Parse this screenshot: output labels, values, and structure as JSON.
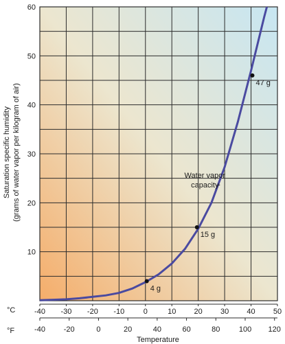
{
  "chart_data": {
    "type": "line",
    "title": "",
    "xlabel": "Temperature",
    "ylabel_line1": "Saturation specific humidity",
    "ylabel_line2": "(grams of water vapor per kilogram of air)",
    "x_celsius_unit": "°C",
    "x_fahrenheit_unit": "°F",
    "xlim_celsius": [
      -40,
      50
    ],
    "ylim": [
      0,
      60
    ],
    "grid": true,
    "y_ticks": [
      10,
      20,
      30,
      40,
      50,
      60
    ],
    "x_ticks_celsius": [
      -40,
      -30,
      -20,
      -10,
      0,
      10,
      20,
      30,
      40,
      50
    ],
    "x_ticks_fahrenheit": [
      -40,
      -20,
      0,
      20,
      40,
      60,
      80,
      100,
      120
    ],
    "series": [
      {
        "name": "Water vapor capacity",
        "color": "#4a4aa0",
        "x": [
          -40,
          -35,
          -30,
          -25,
          -20,
          -15,
          -10,
          -5,
          0,
          5,
          10,
          15,
          20,
          25,
          30,
          35,
          40,
          45,
          47
        ],
        "y": [
          0.1,
          0.2,
          0.3,
          0.5,
          0.8,
          1.1,
          1.6,
          2.5,
          3.8,
          5.4,
          7.6,
          10.6,
          14.7,
          20.0,
          27.3,
          36.5,
          47.0,
          58.0,
          62.0
        ]
      }
    ],
    "points": [
      {
        "x": 0.5,
        "y": 4,
        "label": "4 g"
      },
      {
        "x": 19.5,
        "y": 15,
        "label": "15 g"
      },
      {
        "x": 40.5,
        "y": 46,
        "label": "47 g"
      }
    ],
    "annotation": {
      "line1": "Water vapor",
      "line2": "capacity",
      "x": 22.5,
      "y": 24.5,
      "target_x": 27,
      "target_y": 23.5
    }
  }
}
